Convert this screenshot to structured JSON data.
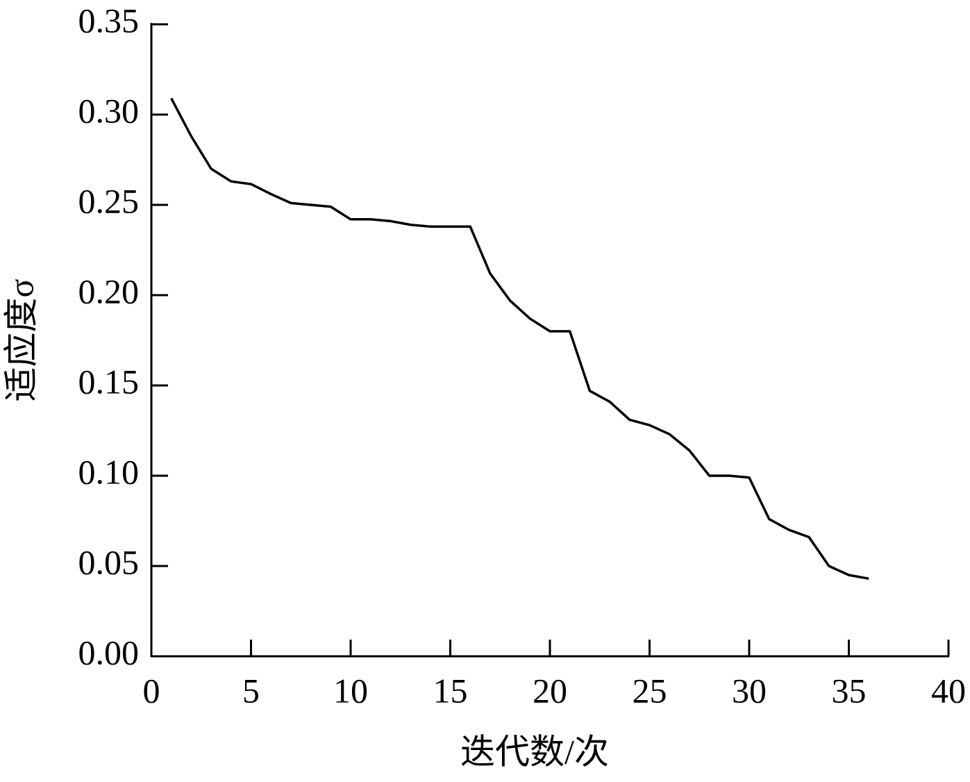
{
  "chart_data": {
    "type": "line",
    "x_label": "迭代数/次",
    "y_label": "适应度σ",
    "x": [
      1,
      2,
      3,
      4,
      5,
      6,
      7,
      8,
      9,
      10,
      11,
      12,
      13,
      14,
      15,
      16,
      17,
      18,
      19,
      20,
      21,
      22,
      23,
      24,
      25,
      26,
      27,
      28,
      29,
      30,
      31,
      32,
      33,
      34,
      35,
      36
    ],
    "series": [
      {
        "color": "#000000",
        "values": [
          0.309,
          0.288,
          0.27,
          0.263,
          0.2615,
          0.256,
          0.251,
          0.25,
          0.249,
          0.242,
          0.242,
          0.241,
          0.239,
          0.238,
          0.238,
          0.238,
          0.212,
          0.197,
          0.187,
          0.18,
          0.18,
          0.147,
          0.141,
          0.131,
          0.128,
          0.123,
          0.114,
          0.1,
          0.1,
          0.099,
          0.076,
          0.07,
          0.066,
          0.05,
          0.045,
          0.043
        ]
      }
    ],
    "xlim": [
      0,
      40
    ],
    "xticks": [
      0,
      5,
      10,
      15,
      20,
      25,
      30,
      35,
      40
    ],
    "ylim": [
      0,
      0.35
    ],
    "yticks": [
      {
        "value": 0,
        "label": "0.00"
      },
      {
        "value": 0.05,
        "label": "0.05"
      },
      {
        "value": 0.1,
        "label": "0.10"
      },
      {
        "value": 0.15,
        "label": "0.15"
      },
      {
        "value": 0.2,
        "label": "0.20"
      },
      {
        "value": 0.25,
        "label": "0.25"
      },
      {
        "value": 0.3,
        "label": "0.30"
      },
      {
        "value": 0.35,
        "label": "0.35"
      }
    ],
    "grid": false
  }
}
